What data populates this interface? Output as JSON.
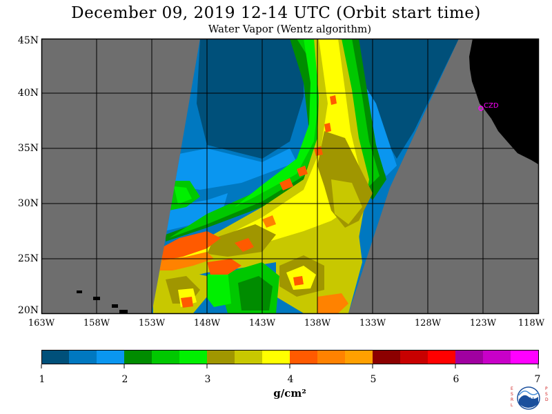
{
  "header": {
    "title": "December 09, 2019  12-14 UTC  (Orbit start time)",
    "subtitle": "Water Vapor (Wentz algorithm)"
  },
  "map": {
    "lat_labels": [
      "45N",
      "40N",
      "35N",
      "30N",
      "25N",
      "20N"
    ],
    "lon_labels": [
      "163W",
      "158W",
      "153W",
      "148W",
      "143W",
      "138W",
      "133W",
      "128W",
      "123W",
      "118W"
    ],
    "station_label": "CZD",
    "colors": {
      "no_data": "#6e6e6e",
      "land": "#000000",
      "grid": "#000000",
      "station": "#ff00ff"
    }
  },
  "colorbar": {
    "tick_labels": [
      "1",
      "2",
      "3",
      "4",
      "5",
      "6",
      "7"
    ],
    "units": "g/cm²",
    "colors": [
      "#00507a",
      "#0078c0",
      "#0a96f0",
      "#008c00",
      "#00c800",
      "#00f000",
      "#a09600",
      "#c8c800",
      "#ffff00",
      "#ff5a00",
      "#ff8200",
      "#ffa000",
      "#8c0000",
      "#c80000",
      "#ff0000",
      "#a000a0",
      "#c800c8",
      "#ff00ff"
    ]
  },
  "logo": {
    "left_letters": "ESRL",
    "right_letters": "PSD",
    "name": "NOAA"
  }
}
